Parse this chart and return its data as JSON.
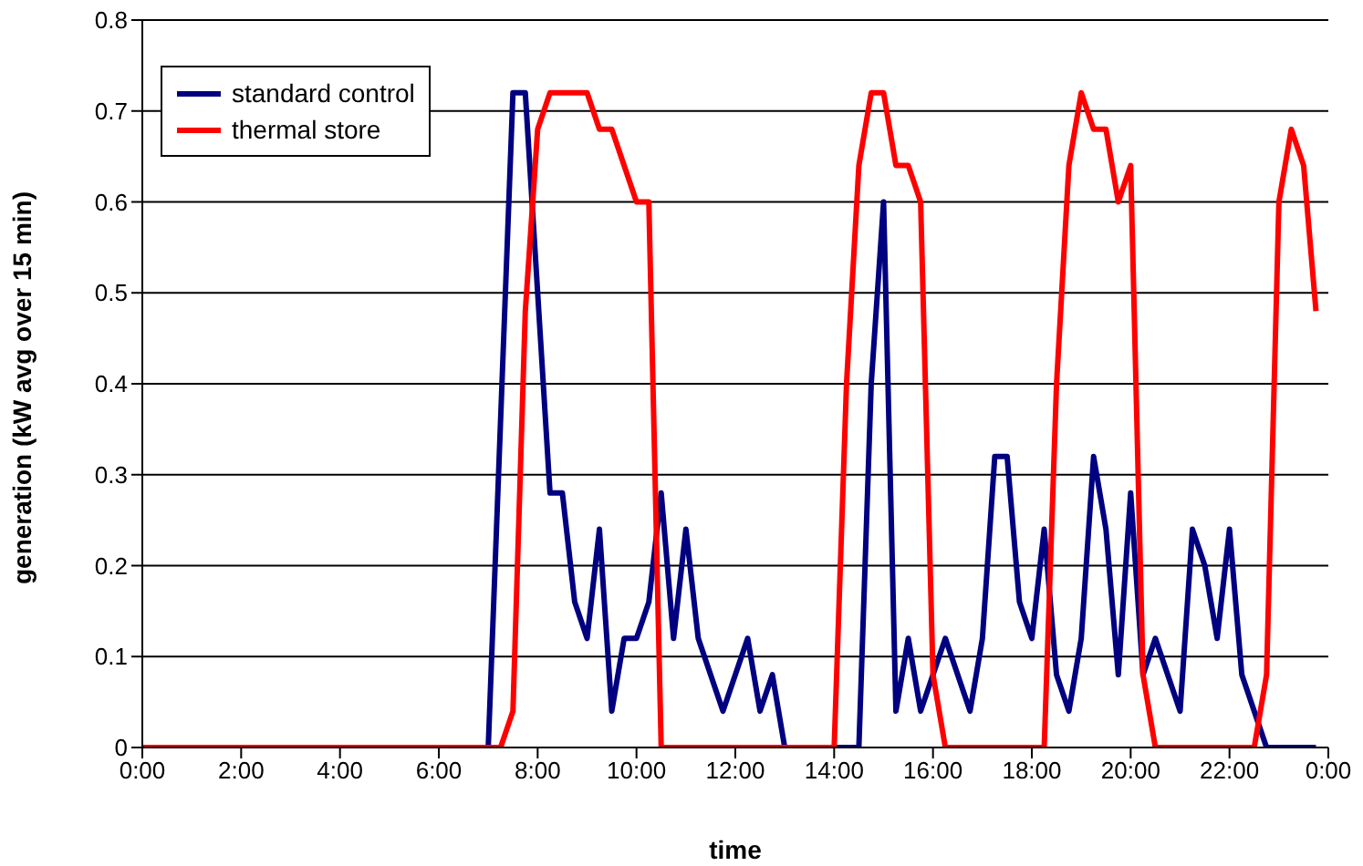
{
  "chart_data": {
    "type": "line",
    "xlabel": "time",
    "ylabel": "generation (kW avg over 15 min)",
    "xlim": [
      0,
      24
    ],
    "ylim": [
      0,
      0.8
    ],
    "xticks": [
      {
        "value": 0,
        "label": "0:00"
      },
      {
        "value": 2,
        "label": "2:00"
      },
      {
        "value": 4,
        "label": "4:00"
      },
      {
        "value": 6,
        "label": "6:00"
      },
      {
        "value": 8,
        "label": "8:00"
      },
      {
        "value": 10,
        "label": "10:00"
      },
      {
        "value": 12,
        "label": "12:00"
      },
      {
        "value": 14,
        "label": "14:00"
      },
      {
        "value": 16,
        "label": "16:00"
      },
      {
        "value": 18,
        "label": "18:00"
      },
      {
        "value": 20,
        "label": "20:00"
      },
      {
        "value": 22,
        "label": "22:00"
      },
      {
        "value": 24,
        "label": "0:00"
      }
    ],
    "yticks": [
      0,
      0.1,
      0.2,
      0.3,
      0.4,
      0.5,
      0.6,
      0.7,
      0.8
    ],
    "grid": "y",
    "legend": "top left",
    "marker": "none",
    "line_style": "solid",
    "series": [
      {
        "name": "standard control",
        "color": "#000080",
        "x": [
          0,
          7,
          7.5,
          7.75,
          8.25,
          8.5,
          8.75,
          9,
          9.25,
          9.5,
          9.75,
          10,
          10.25,
          10.5,
          10.75,
          11,
          11.25,
          11.75,
          12.25,
          12.5,
          12.75,
          13,
          14.5,
          14.75,
          15,
          15.25,
          15.5,
          15.75,
          16.25,
          16.75,
          17,
          17.25,
          17.5,
          17.75,
          18,
          18.25,
          18.5,
          18.75,
          19,
          19.25,
          19.5,
          19.75,
          20,
          20.25,
          20.5,
          21,
          21.25,
          21.5,
          21.75,
          22,
          22.25,
          22.75,
          23.75
        ],
        "values": [
          0,
          0,
          0.72,
          0.72,
          0.28,
          0.28,
          0.16,
          0.12,
          0.24,
          0.04,
          0.12,
          0.12,
          0.16,
          0.28,
          0.12,
          0.24,
          0.12,
          0.04,
          0.12,
          0.04,
          0.08,
          0,
          0,
          0.4,
          0.6,
          0.04,
          0.12,
          0.04,
          0.12,
          0.04,
          0.12,
          0.32,
          0.32,
          0.16,
          0.12,
          0.24,
          0.08,
          0.04,
          0.12,
          0.32,
          0.24,
          0.08,
          0.28,
          0.08,
          0.12,
          0.04,
          0.24,
          0.2,
          0.12,
          0.24,
          0.08,
          0,
          0
        ]
      },
      {
        "name": "thermal store",
        "color": "#ff0000",
        "x": [
          0,
          7.25,
          7.5,
          7.75,
          8,
          8.25,
          9,
          9.25,
          9.5,
          10,
          10.25,
          10.5,
          14,
          14.25,
          14.5,
          14.75,
          15,
          15.25,
          15.5,
          15.75,
          16,
          16.25,
          18.25,
          18.5,
          18.75,
          19,
          19.25,
          19.5,
          19.75,
          20,
          20.25,
          20.5,
          22.5,
          22.75,
          23,
          23.25,
          23.5,
          23.75
        ],
        "values": [
          0,
          0,
          0.04,
          0.48,
          0.68,
          0.72,
          0.72,
          0.68,
          0.68,
          0.6,
          0.6,
          0,
          0,
          0.4,
          0.64,
          0.72,
          0.72,
          0.64,
          0.64,
          0.6,
          0.08,
          0,
          0,
          0.4,
          0.64,
          0.72,
          0.68,
          0.68,
          0.6,
          0.64,
          0.08,
          0,
          0,
          0.08,
          0.6,
          0.68,
          0.64,
          0.48
        ]
      }
    ]
  }
}
